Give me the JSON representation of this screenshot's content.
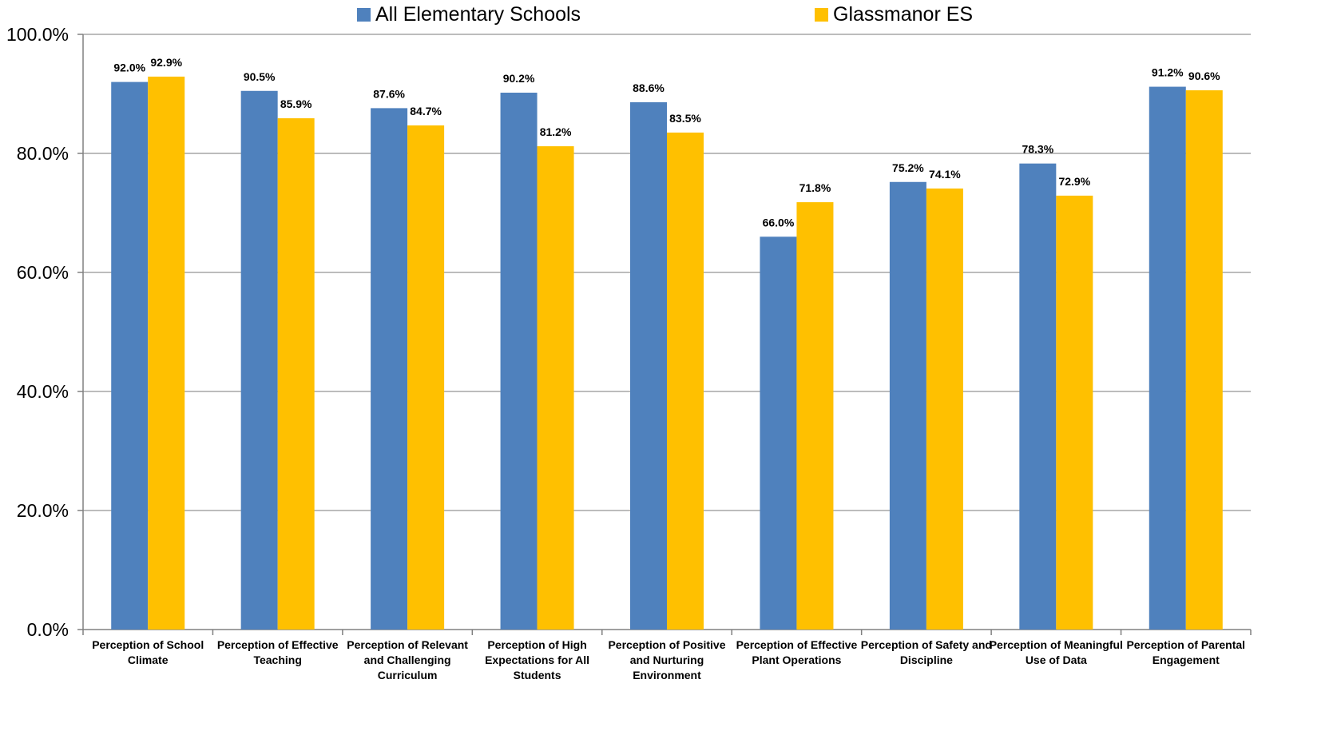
{
  "chart_data": {
    "type": "bar",
    "title": "",
    "xlabel": "",
    "ylabel": "",
    "ylim": [
      0,
      100
    ],
    "yticks": [
      0,
      20,
      40,
      60,
      80,
      100
    ],
    "ytick_labels": [
      "0.0%",
      "20.0%",
      "40.0%",
      "60.0%",
      "80.0%",
      "100.0%"
    ],
    "grid": true,
    "legend_position": "top",
    "categories": [
      [
        "Perception of School",
        "Climate"
      ],
      [
        "Perception of Effective",
        "Teaching"
      ],
      [
        "Perception of Relevant",
        "and Challenging",
        "Curriculum"
      ],
      [
        "Perception of High",
        "Expectations for All",
        "Students"
      ],
      [
        "Perception of Positive",
        "and Nurturing",
        "Environment"
      ],
      [
        "Perception of Effective",
        "Plant Operations"
      ],
      [
        "Perception of Safety and",
        "Discipline"
      ],
      [
        "Perception of Meaningful",
        "Use of Data"
      ],
      [
        "Perception of Parental",
        "Engagement"
      ]
    ],
    "series": [
      {
        "name": "All Elementary Schools",
        "color": "#4F81BD",
        "values": [
          92.0,
          90.5,
          87.6,
          90.2,
          88.6,
          66.0,
          75.2,
          78.3,
          91.2
        ],
        "labels": [
          "92.0%",
          "90.5%",
          "87.6%",
          "90.2%",
          "88.6%",
          "66.0%",
          "75.2%",
          "78.3%",
          "91.2%"
        ]
      },
      {
        "name": "Glassmanor ES",
        "color": "#FFC000",
        "values": [
          92.9,
          85.9,
          84.7,
          81.2,
          83.5,
          71.8,
          74.1,
          72.9,
          90.6
        ],
        "labels": [
          "92.9%",
          "85.9%",
          "84.7%",
          "81.2%",
          "83.5%",
          "71.8%",
          "74.1%",
          "72.9%",
          "90.6%"
        ]
      }
    ],
    "gridline_color": "#A6A6A6",
    "axis_color": "#808080"
  }
}
